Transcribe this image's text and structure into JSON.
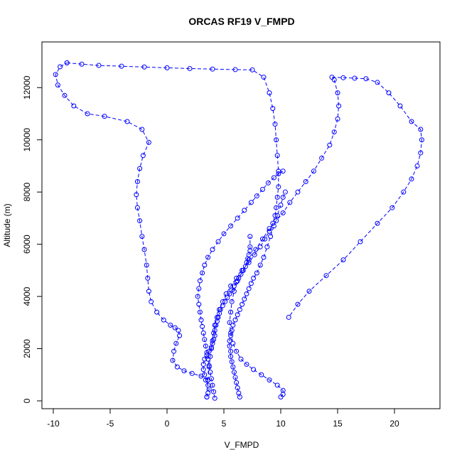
{
  "chart_data": {
    "type": "scatter",
    "title": "ORCAS RF19 V_FMPD",
    "xlabel": "V_FMPD",
    "ylabel": "Altitude (m)",
    "xlim": [
      -11,
      24
    ],
    "ylim": [
      -300,
      13750
    ],
    "x_ticks": [
      -10,
      -5,
      0,
      5,
      10,
      15,
      20
    ],
    "y_ticks": [
      0,
      2000,
      4000,
      6000,
      8000,
      10000,
      12000
    ],
    "x_tick_labels": [
      "-10",
      "-5",
      "0",
      "5",
      "10",
      "15",
      "20"
    ],
    "y_tick_labels": [
      "0",
      "2000",
      "4000",
      "6000",
      "8000",
      "10000",
      "12000"
    ],
    "marker": "open-circle",
    "line_style": "dashed",
    "color": "#0000ff",
    "grid": false,
    "series": [
      {
        "x": [
          3.5,
          3.6,
          3.7,
          3.6,
          3.4,
          3.3,
          3.2,
          3.2,
          3.3,
          3.5,
          3.7,
          3.9,
          4.0,
          4.1,
          4.2,
          4.2,
          4.3,
          4.4,
          4.5,
          4.6,
          4.7,
          4.9,
          5.1,
          5.3,
          5.5,
          5.7,
          5.9,
          6.1,
          6.3,
          6.5,
          6.7,
          6.9,
          7.0,
          7.1,
          7.2,
          7.3,
          7.3,
          7.3
        ],
        "y": [
          150,
          300,
          450,
          600,
          800,
          1000,
          1200,
          1400,
          1600,
          1750,
          1900,
          2050,
          2200,
          2350,
          2500,
          2700,
          2900,
          3050,
          3200,
          3350,
          3500,
          3650,
          3800,
          3950,
          4100,
          4250,
          4400,
          4550,
          4700,
          4850,
          5000,
          5150,
          5300,
          5450,
          5600,
          5750,
          5900,
          6300
        ]
      },
      {
        "x": [
          6.4,
          6.3,
          6.2,
          6.1,
          6.0,
          5.9,
          5.8,
          5.7,
          5.6,
          5.6,
          5.5,
          5.5,
          5.6,
          5.7,
          5.8,
          6.0,
          6.2,
          6.4,
          6.6,
          6.8,
          7.0,
          7.2,
          7.4,
          7.6,
          7.9,
          8.2,
          8.5,
          8.8,
          9.1,
          9.4,
          9.7,
          10.0,
          10.2,
          10.4
        ],
        "y": [
          150,
          300,
          500,
          700,
          900,
          1100,
          1300,
          1500,
          1700,
          1900,
          2100,
          2300,
          2500,
          2700,
          2900,
          3100,
          3300,
          3500,
          3700,
          3900,
          4100,
          4300,
          4500,
          4700,
          4900,
          5200,
          5500,
          5900,
          6300,
          6700,
          7100,
          7500,
          7800,
          8000
        ]
      },
      {
        "x": [
          4.2,
          4.1,
          4.0,
          3.9,
          3.8,
          3.7,
          3.6,
          3.5,
          3.4,
          3.3,
          3.2,
          3.1,
          3.0,
          2.9,
          2.8,
          2.7,
          2.8,
          2.9,
          3.1,
          3.3,
          3.6,
          4.0,
          4.5,
          5.0,
          5.6,
          6.2,
          6.8,
          7.4,
          7.9,
          8.4,
          8.9,
          9.4,
          9.8,
          10.2
        ],
        "y": [
          100,
          350,
          600,
          850,
          1100,
          1350,
          1600,
          1850,
          2100,
          2350,
          2600,
          2850,
          3100,
          3400,
          3700,
          4000,
          4300,
          4600,
          4900,
          5200,
          5500,
          5800,
          6100,
          6400,
          6700,
          7000,
          7300,
          7600,
          7850,
          8100,
          8350,
          8550,
          8700,
          8800
        ]
      },
      {
        "x": [
          3.6,
          3.0,
          2.2,
          1.5,
          0.9,
          0.5,
          0.6,
          0.8,
          1.1,
          1.0,
          0.7,
          0.3,
          -0.3,
          -0.9,
          -1.4,
          -1.6,
          -1.7,
          -1.8,
          -2.0,
          -2.2,
          -2.4,
          -2.6,
          -2.7,
          -2.6,
          -2.4,
          -2.1,
          -1.6,
          -2.2,
          -3.5,
          -5.5,
          -7.0,
          -8.2,
          -9.0,
          -9.6,
          -9.8,
          -9.4,
          -8.8
        ],
        "y": [
          800,
          950,
          1050,
          1150,
          1300,
          1550,
          1900,
          2200,
          2500,
          2700,
          2800,
          2900,
          3100,
          3400,
          3800,
          4200,
          4700,
          5200,
          5800,
          6300,
          6900,
          7400,
          7900,
          8400,
          8900,
          9400,
          9900,
          10400,
          10700,
          10900,
          11000,
          11300,
          11700,
          12100,
          12500,
          12800,
          12950
        ]
      },
      {
        "x": [
          -8.8,
          -7.5,
          -6.0,
          -4.0,
          -2.0,
          0.0,
          2.0,
          4.0,
          6.0,
          7.5,
          8.5,
          9.0,
          9.3,
          9.5,
          9.6,
          9.7,
          9.8,
          9.8,
          9.7,
          9.6,
          9.5,
          9.3,
          9.0,
          8.6,
          8.2,
          7.7,
          7.2,
          6.6,
          6.1,
          5.6,
          5.2,
          4.9,
          4.6,
          4.4,
          4.2,
          4.1,
          4.0,
          3.9,
          3.8,
          3.7,
          3.6,
          3.5
        ],
        "y": [
          12950,
          12900,
          12850,
          12820,
          12790,
          12760,
          12730,
          12710,
          12690,
          12680,
          12400,
          11800,
          11200,
          10600,
          10000,
          9400,
          8800,
          8200,
          7800,
          7400,
          7100,
          6800,
          6500,
          6200,
          5900,
          5600,
          5300,
          5000,
          4700,
          4400,
          4100,
          3800,
          3500,
          3200,
          2900,
          2600,
          2300,
          2000,
          1700,
          1300,
          800,
          150
        ]
      },
      {
        "x": [
          14.5,
          15.5,
          16.5,
          17.5,
          18.5,
          19.5,
          20.5,
          21.5,
          22.3,
          22.4,
          22.3,
          22.0,
          21.5,
          20.8,
          19.8,
          18.5,
          17.0,
          15.5,
          14.0,
          12.5,
          11.5,
          10.7
        ],
        "y": [
          12400,
          12380,
          12360,
          12340,
          12200,
          11800,
          11300,
          10700,
          10400,
          10000,
          9500,
          9000,
          8500,
          8000,
          7400,
          6800,
          6100,
          5400,
          4800,
          4200,
          3700,
          3200
        ]
      },
      {
        "x": [
          14.7,
          15.0,
          15.1,
          15.0,
          14.7,
          14.3,
          13.6,
          12.9,
          12.2,
          11.5,
          10.8,
          10.2,
          9.6,
          9.0,
          8.4,
          7.8,
          7.2,
          6.7,
          6.2,
          5.9,
          5.7,
          5.6,
          5.5,
          5.6,
          5.8,
          6.1,
          6.5,
          7.0,
          7.6,
          8.3,
          9.0,
          9.7,
          10.2,
          10.2,
          10.0
        ],
        "y": [
          12300,
          11800,
          11300,
          10800,
          10300,
          9800,
          9300,
          8800,
          8400,
          8000,
          7600,
          7200,
          6900,
          6600,
          6200,
          5800,
          5400,
          5000,
          4600,
          4200,
          3800,
          3400,
          3000,
          2600,
          2200,
          1900,
          1600,
          1400,
          1200,
          1000,
          800,
          600,
          400,
          250,
          150
        ]
      }
    ]
  }
}
